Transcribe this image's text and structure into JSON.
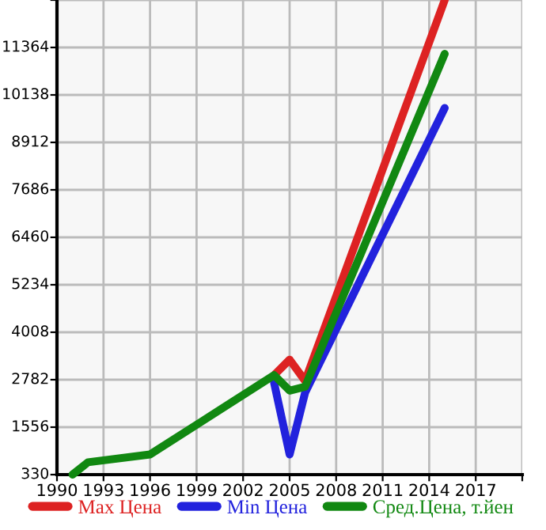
{
  "chart_data": {
    "type": "line",
    "x": [
      1991,
      1992,
      1996,
      2004,
      2005,
      2006,
      2015
    ],
    "series": [
      {
        "name": "Max Цена",
        "color": "#dd2222",
        "values": [
          null,
          null,
          null,
          2900,
          3300,
          2750,
          12590
        ]
      },
      {
        "name": "Min Цена",
        "color": "#2222dd",
        "values": [
          null,
          null,
          null,
          2700,
          850,
          2450,
          9800
        ]
      },
      {
        "name": "Сред.Цена, т.йен",
        "color": "#118811",
        "values": [
          330,
          650,
          850,
          2900,
          2500,
          2600,
          11200
        ]
      }
    ],
    "xlim": [
      1990,
      2020
    ],
    "xticks": [
      1990,
      1993,
      1996,
      1999,
      2002,
      2005,
      2008,
      2011,
      2014,
      2017,
      {
        "value": 2020,
        "label": null
      }
    ],
    "ylim": [
      330,
      12590
    ],
    "yticks": [
      330,
      1556,
      2782,
      4008,
      5234,
      6460,
      7686,
      8912,
      10138,
      11364,
      {
        "value": 12590,
        "label": null
      }
    ],
    "grid": true,
    "legend": "bottom",
    "marker": "none",
    "line_style": "solid"
  }
}
